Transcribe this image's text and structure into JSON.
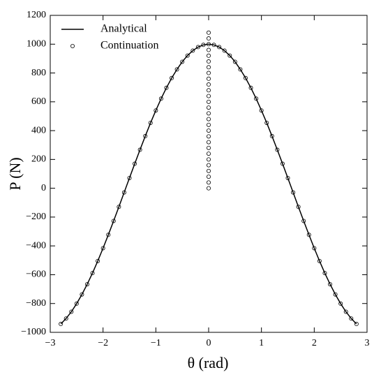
{
  "chart_data": {
    "type": "line",
    "xlabel": "θ (rad)",
    "ylabel": "P (N)",
    "xlim": [
      -3,
      3
    ],
    "xticks": [
      {
        "value": -3,
        "label": "−3"
      },
      {
        "value": -2,
        "label": "−2"
      },
      {
        "value": -1,
        "label": "−1"
      },
      0,
      1,
      2,
      3
    ],
    "ylim": [
      -1000,
      1200
    ],
    "yticks": [
      {
        "value": -1000,
        "label": "−1000"
      },
      {
        "value": -800,
        "label": "−800"
      },
      {
        "value": -600,
        "label": "−600"
      },
      {
        "value": -400,
        "label": "−400"
      },
      {
        "value": -200,
        "label": "−200"
      },
      0,
      200,
      400,
      600,
      800,
      1000,
      1200
    ],
    "legend": "upper left",
    "series": [
      {
        "name": "Analytical",
        "type": "line",
        "color": "#000000",
        "x": [
          -2.8,
          -2.7,
          -2.6,
          -2.5,
          -2.4,
          -2.3,
          -2.2,
          -2.1,
          -2.0,
          -1.9,
          -1.8,
          -1.7,
          -1.6,
          -1.5,
          -1.4,
          -1.3,
          -1.2,
          -1.1,
          -1.0,
          -0.9,
          -0.8,
          -0.7,
          -0.6,
          -0.5,
          -0.4,
          -0.3,
          -0.2,
          -0.1,
          0,
          0.1,
          0.2,
          0.3,
          0.4,
          0.5,
          0.6,
          0.7,
          0.8,
          0.9,
          1.0,
          1.1,
          1.2,
          1.3,
          1.4,
          1.5,
          1.6,
          1.7,
          1.8,
          1.9,
          2.0,
          2.1,
          2.2,
          2.3,
          2.4,
          2.5,
          2.6,
          2.7,
          2.8
        ],
        "values": [
          -942,
          -904,
          -857,
          -801,
          -737,
          -666,
          -589,
          -505,
          -416,
          -323,
          -227,
          -129,
          -29,
          71,
          170,
          267,
          362,
          454,
          540,
          622,
          697,
          765,
          825,
          878,
          921,
          955,
          980,
          995,
          1000,
          995,
          980,
          955,
          921,
          878,
          825,
          765,
          697,
          622,
          540,
          454,
          362,
          267,
          170,
          71,
          -29,
          -129,
          -227,
          -323,
          -416,
          -505,
          -589,
          -666,
          -737,
          -801,
          -857,
          -904,
          -942
        ]
      },
      {
        "name": "Continuation",
        "type": "scatter",
        "color": "#000000",
        "x": [
          -2.8,
          -2.7,
          -2.6,
          -2.5,
          -2.4,
          -2.3,
          -2.2,
          -2.1,
          -2.0,
          -1.9,
          -1.8,
          -1.7,
          -1.6,
          -1.5,
          -1.4,
          -1.3,
          -1.2,
          -1.1,
          -1.0,
          -0.9,
          -0.8,
          -0.7,
          -0.6,
          -0.5,
          -0.4,
          -0.3,
          -0.2,
          -0.1,
          0,
          0.1,
          0.2,
          0.3,
          0.4,
          0.5,
          0.6,
          0.7,
          0.8,
          0.9,
          1.0,
          1.1,
          1.2,
          1.3,
          1.4,
          1.5,
          1.6,
          1.7,
          1.8,
          1.9,
          2.0,
          2.1,
          2.2,
          2.3,
          2.4,
          2.5,
          2.6,
          2.7,
          2.8,
          0,
          0,
          0,
          0,
          0,
          0,
          0,
          0,
          0,
          0,
          0,
          0,
          0,
          0,
          0,
          0,
          0,
          0,
          0,
          0,
          0,
          0,
          0,
          0,
          0,
          0,
          0
        ],
        "values": [
          -942,
          -904,
          -857,
          -801,
          -737,
          -666,
          -589,
          -505,
          -416,
          -323,
          -227,
          -129,
          -29,
          71,
          170,
          267,
          362,
          454,
          540,
          622,
          697,
          765,
          825,
          878,
          921,
          955,
          980,
          995,
          1000,
          995,
          980,
          955,
          921,
          878,
          825,
          765,
          697,
          622,
          540,
          454,
          362,
          267,
          170,
          71,
          -29,
          -129,
          -227,
          -323,
          -416,
          -505,
          -589,
          -666,
          -737,
          -801,
          -857,
          -904,
          -942,
          0,
          40,
          80,
          120,
          160,
          200,
          240,
          280,
          320,
          360,
          400,
          440,
          480,
          520,
          560,
          600,
          640,
          680,
          720,
          760,
          800,
          840,
          880,
          920,
          960,
          1040,
          1080
        ]
      }
    ]
  }
}
